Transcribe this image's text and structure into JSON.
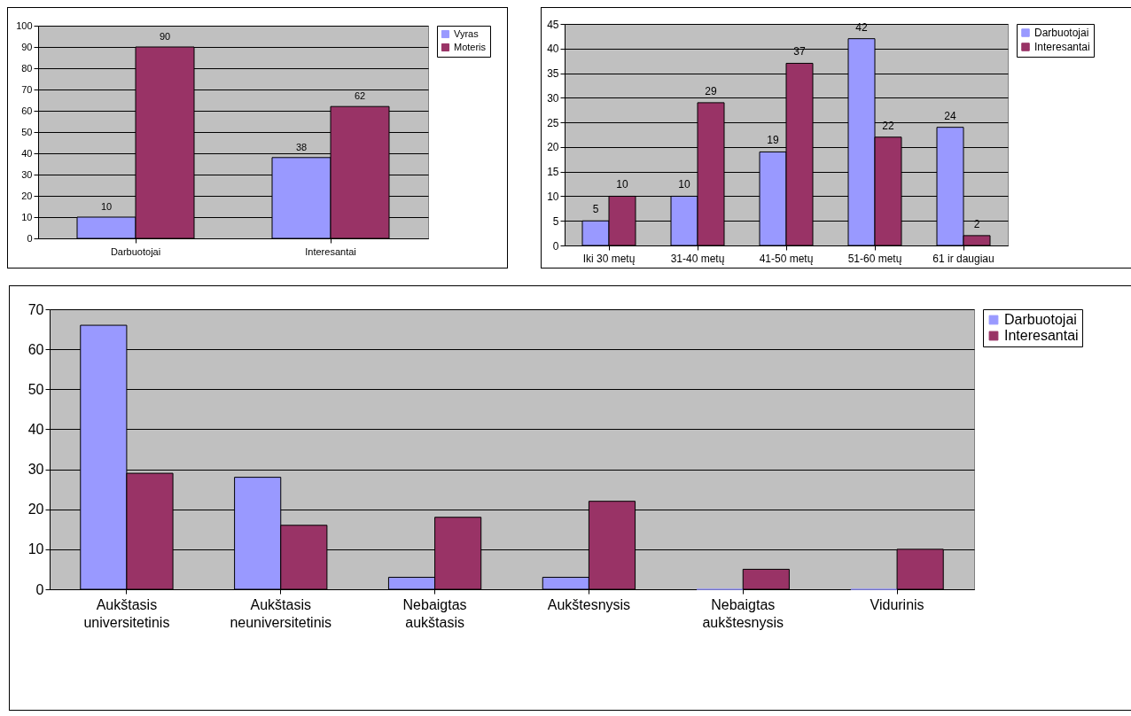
{
  "chart_data": [
    {
      "type": "bar",
      "categories": [
        "Darbuotojai",
        "Interesantai"
      ],
      "series": [
        {
          "name": "Vyras",
          "color": "#9999ff",
          "values": [
            10,
            38
          ]
        },
        {
          "name": "Moteris",
          "color": "#993366",
          "values": [
            90,
            62
          ]
        }
      ],
      "ylim": [
        0,
        100
      ],
      "yticks": [
        0,
        10,
        20,
        30,
        40,
        50,
        60,
        70,
        80,
        90,
        100
      ],
      "grid": "y",
      "legend": "right",
      "data_labels": true
    },
    {
      "type": "bar",
      "categories": [
        "Iki 30 metų",
        "31-40 metų",
        "41-50 metų",
        "51-60 metų",
        "61 ir daugiau"
      ],
      "series": [
        {
          "name": "Darbuotojai",
          "color": "#9999ff",
          "values": [
            5,
            10,
            19,
            42,
            24
          ]
        },
        {
          "name": "Interesantai",
          "color": "#993366",
          "values": [
            10,
            29,
            37,
            22,
            2
          ]
        }
      ],
      "ylim": [
        0,
        45
      ],
      "yticks": [
        0,
        5,
        10,
        15,
        20,
        25,
        30,
        35,
        40,
        45
      ],
      "grid": "y",
      "legend": "right",
      "data_labels": true
    },
    {
      "type": "bar",
      "categories": [
        "Aukštasis universitetinis",
        "Aukštasis neuniversitetinis",
        "Nebaigtas aukštasis",
        "Aukštesnysis",
        "Nebaigtas aukštesnysis",
        "Vidurinis"
      ],
      "series": [
        {
          "name": "Darbuotojai",
          "color": "#9999ff",
          "values": [
            66,
            28,
            3,
            3,
            0,
            0
          ]
        },
        {
          "name": "Interesantai",
          "color": "#993366",
          "values": [
            29,
            16,
            18,
            22,
            5,
            10
          ]
        }
      ],
      "ylim": [
        0,
        70
      ],
      "yticks": [
        0,
        10,
        20,
        30,
        40,
        50,
        60,
        70
      ],
      "grid": "y",
      "legend": "right"
    }
  ]
}
